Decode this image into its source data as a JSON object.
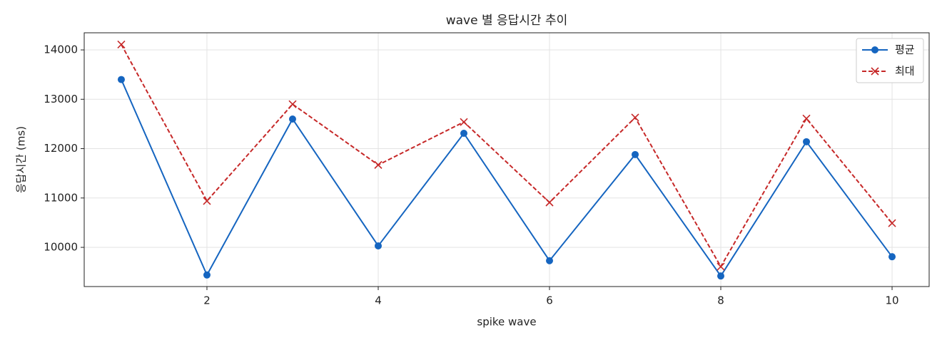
{
  "chart_data": {
    "type": "line",
    "title": "wave 별 응답시간 추이",
    "x_label": "spike wave",
    "y_label": "응답시간 (ms)",
    "x": [
      1,
      2,
      3,
      4,
      5,
      6,
      7,
      8,
      9,
      10
    ],
    "series": [
      {
        "name": "평균",
        "color": "#1565c0",
        "marker": "o",
        "linestyle": "solid",
        "values": [
          13400,
          9440,
          12600,
          10030,
          12310,
          9730,
          11880,
          9420,
          12140,
          9810
        ]
      },
      {
        "name": "최대",
        "color": "#c62828",
        "marker": "x",
        "linestyle": "dashed",
        "values": [
          14110,
          10940,
          12900,
          11670,
          12540,
          10910,
          12630,
          9610,
          12610,
          10490
        ]
      }
    ],
    "xlim": [
      0.567,
      10.433
    ],
    "xticks": [
      2,
      4,
      6,
      8,
      10
    ],
    "ylim": [
      9206,
      14347
    ],
    "yticks": [
      10000,
      11000,
      12000,
      13000,
      14000
    ],
    "grid": true,
    "legend": "upper right"
  }
}
